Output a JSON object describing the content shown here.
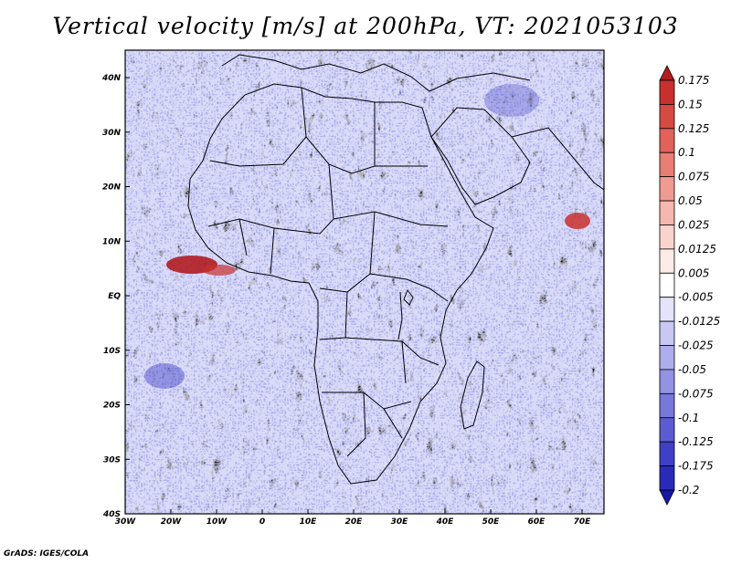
{
  "title": "Vertical velocity [m/s] at 200hPa, VT: 2021053103",
  "credit": "GrADS: IGES/COLA",
  "map": {
    "region": "Africa",
    "lon_range": [
      -30,
      75
    ],
    "lat_range": [
      -40,
      45
    ],
    "lat_labels": [
      "40N",
      "30N",
      "20N",
      "10N",
      "EQ",
      "10S",
      "20S",
      "30S",
      "40S"
    ],
    "lon_labels": [
      "30W",
      "20W",
      "10W",
      "0",
      "10E",
      "20E",
      "30E",
      "40E",
      "50E",
      "60E",
      "70E"
    ]
  },
  "legend": {
    "levels": [
      "0.175",
      "0.15",
      "0.125",
      "0.1",
      "0.075",
      "0.05",
      "0.025",
      "0.0125",
      "0.005",
      "-0.005",
      "-0.0125",
      "-0.025",
      "-0.05",
      "-0.075",
      "-0.1",
      "-0.125",
      "-0.175",
      "-0.2"
    ],
    "colors": [
      "#b01c20",
      "#c8302e",
      "#d64a44",
      "#e0635b",
      "#e97e75",
      "#f09b92",
      "#f5b7ae",
      "#f9d3cd",
      "#fcebe8",
      "#ffffff",
      "#e3e3fa",
      "#c8c8f3",
      "#aeaeec",
      "#9393e4",
      "#7777dc",
      "#5c5cd2",
      "#4040c6",
      "#2a2ab8",
      "#1818a6"
    ]
  }
}
